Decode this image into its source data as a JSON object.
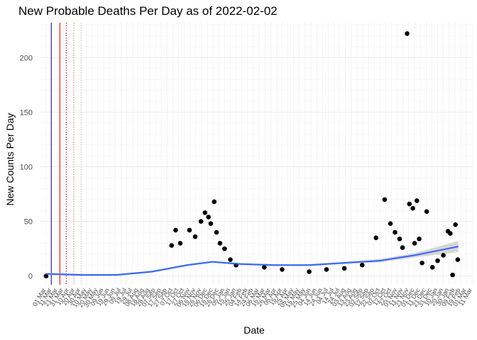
{
  "chart_data": {
    "type": "scatter",
    "title": "New Probable Deaths Per Day as of 2022-02-02",
    "xlabel": "Date",
    "ylabel": "New Counts Per Day",
    "ylim": [
      -8,
      232
    ],
    "yticks": [
      0,
      50,
      100,
      150,
      200
    ],
    "xlim": [
      "2020-02-19",
      "2022-03-12"
    ],
    "x_tick_labels": [
      {
        "date": "2020-03-01",
        "label": "01 Mar"
      },
      {
        "date": "2020-03-11",
        "label": "11 Mar"
      },
      {
        "date": "2020-03-21",
        "label": "21 Mar"
      },
      {
        "date": "2020-03-31",
        "label": "31 Mar"
      },
      {
        "date": "2020-04-10",
        "label": "10 Apr"
      },
      {
        "date": "2020-04-20",
        "label": "20 Apr"
      },
      {
        "date": "2020-04-30",
        "label": "30 Apr"
      },
      {
        "date": "2020-05-10",
        "label": "10 May"
      },
      {
        "date": "2020-05-20",
        "label": "20 May"
      },
      {
        "date": "2020-05-30",
        "label": "30 May"
      },
      {
        "date": "2020-06-09",
        "label": "09 Jun"
      },
      {
        "date": "2020-06-19",
        "label": "19 Jun"
      },
      {
        "date": "2020-06-29",
        "label": "29 Jun"
      },
      {
        "date": "2020-07-09",
        "label": "09 Jul"
      },
      {
        "date": "2020-07-19",
        "label": "19 Jul"
      },
      {
        "date": "2020-07-29",
        "label": "29 Jul"
      },
      {
        "date": "2020-08-08",
        "label": "08 Aug"
      },
      {
        "date": "2020-08-18",
        "label": "18 Aug"
      },
      {
        "date": "2020-08-28",
        "label": "28 Aug"
      },
      {
        "date": "2020-09-07",
        "label": "07 Sep"
      },
      {
        "date": "2020-09-17",
        "label": "17 Sep"
      },
      {
        "date": "2020-09-27",
        "label": "27 Sep"
      },
      {
        "date": "2020-10-07",
        "label": "07 Oct"
      },
      {
        "date": "2020-10-17",
        "label": "17 Oct"
      },
      {
        "date": "2020-10-27",
        "label": "27 Oct"
      },
      {
        "date": "2020-11-06",
        "label": "06 Nov"
      },
      {
        "date": "2020-11-16",
        "label": "16 Nov"
      },
      {
        "date": "2020-11-26",
        "label": "26 Nov"
      },
      {
        "date": "2020-12-06",
        "label": "06 Dec"
      },
      {
        "date": "2020-12-16",
        "label": "16 Dec"
      },
      {
        "date": "2020-12-26",
        "label": "26 Dec"
      },
      {
        "date": "2021-01-05",
        "label": "05 Jan"
      },
      {
        "date": "2021-01-15",
        "label": "15 Jan"
      },
      {
        "date": "2021-01-25",
        "label": "25 Jan"
      },
      {
        "date": "2021-02-04",
        "label": "04 Feb"
      },
      {
        "date": "2021-02-14",
        "label": "14 Feb"
      },
      {
        "date": "2021-02-24",
        "label": "24 Feb"
      },
      {
        "date": "2021-03-06",
        "label": "06 Mar"
      },
      {
        "date": "2021-03-16",
        "label": "16 Mar"
      },
      {
        "date": "2021-03-26",
        "label": "26 Mar"
      },
      {
        "date": "2021-04-05",
        "label": "05 Apr"
      },
      {
        "date": "2021-04-15",
        "label": "15 Apr"
      },
      {
        "date": "2021-04-25",
        "label": "25 Apr"
      },
      {
        "date": "2021-05-05",
        "label": "05 May"
      },
      {
        "date": "2021-05-15",
        "label": "15 May"
      },
      {
        "date": "2021-05-25",
        "label": "25 May"
      },
      {
        "date": "2021-06-04",
        "label": "04 Jun"
      },
      {
        "date": "2021-06-14",
        "label": "14 Jun"
      },
      {
        "date": "2021-06-24",
        "label": "24 Jun"
      },
      {
        "date": "2021-07-04",
        "label": "04 Jul"
      },
      {
        "date": "2021-07-14",
        "label": "14 Jul"
      },
      {
        "date": "2021-07-24",
        "label": "24 Jul"
      },
      {
        "date": "2021-08-03",
        "label": "03 Aug"
      },
      {
        "date": "2021-08-13",
        "label": "13 Aug"
      },
      {
        "date": "2021-08-23",
        "label": "23 Aug"
      },
      {
        "date": "2021-09-02",
        "label": "02 Sep"
      },
      {
        "date": "2021-09-12",
        "label": "12 Sep"
      },
      {
        "date": "2021-09-22",
        "label": "22 Sep"
      },
      {
        "date": "2021-10-02",
        "label": "02 Oct"
      },
      {
        "date": "2021-10-12",
        "label": "12 Oct"
      },
      {
        "date": "2021-10-22",
        "label": "22 Oct"
      },
      {
        "date": "2021-11-01",
        "label": "01 Nov"
      },
      {
        "date": "2021-11-11",
        "label": "11 Nov"
      },
      {
        "date": "2021-11-21",
        "label": "21 Nov"
      },
      {
        "date": "2021-12-01",
        "label": "01 Dec"
      },
      {
        "date": "2021-12-11",
        "label": "11 Dec"
      },
      {
        "date": "2021-12-21",
        "label": "21 Dec"
      },
      {
        "date": "2021-12-31",
        "label": "31 Dec"
      },
      {
        "date": "2022-01-10",
        "label": "10 Jan"
      },
      {
        "date": "2022-01-20",
        "label": "20 Jan"
      },
      {
        "date": "2022-01-30",
        "label": "30 Jan"
      },
      {
        "date": "2022-02-09",
        "label": "09 Feb"
      },
      {
        "date": "2022-02-19",
        "label": "19 Feb"
      },
      {
        "date": "2022-03-01",
        "label": "01 Mar"
      },
      {
        "date": "2022-03-11",
        "label": "11 Mar"
      }
    ],
    "reference_lines": [
      {
        "date": "2020-03-10",
        "color": "#00008b",
        "style": "solid"
      },
      {
        "date": "2020-03-25",
        "color": "#cc0000",
        "style": "solid"
      },
      {
        "date": "2020-04-05",
        "color": "#cc0000",
        "style": "dotted"
      },
      {
        "date": "2020-04-18",
        "color": "#e08080",
        "style": "dotted"
      },
      {
        "date": "2020-05-01",
        "color": "#cccccc",
        "style": "dotted"
      }
    ],
    "series": [
      {
        "type": "points",
        "color": "#000000",
        "points": [
          {
            "x": "2020-03-01",
            "y": 0
          },
          {
            "x": "2020-10-05",
            "y": 28
          },
          {
            "x": "2020-10-12",
            "y": 42
          },
          {
            "x": "2020-10-20",
            "y": 30
          },
          {
            "x": "2020-11-05",
            "y": 42
          },
          {
            "x": "2020-11-15",
            "y": 36
          },
          {
            "x": "2020-11-25",
            "y": 50
          },
          {
            "x": "2020-12-02",
            "y": 58
          },
          {
            "x": "2020-12-08",
            "y": 54
          },
          {
            "x": "2020-12-12",
            "y": 48
          },
          {
            "x": "2020-12-18",
            "y": 68
          },
          {
            "x": "2020-12-22",
            "y": 40
          },
          {
            "x": "2020-12-28",
            "y": 30
          },
          {
            "x": "2021-01-05",
            "y": 25
          },
          {
            "x": "2021-01-15",
            "y": 15
          },
          {
            "x": "2021-01-25",
            "y": 10
          },
          {
            "x": "2021-03-15",
            "y": 8
          },
          {
            "x": "2021-04-15",
            "y": 6
          },
          {
            "x": "2021-06-01",
            "y": 4
          },
          {
            "x": "2021-07-01",
            "y": 6
          },
          {
            "x": "2021-08-01",
            "y": 7
          },
          {
            "x": "2021-09-01",
            "y": 10
          },
          {
            "x": "2021-09-25",
            "y": 35
          },
          {
            "x": "2021-10-10",
            "y": 70
          },
          {
            "x": "2021-10-20",
            "y": 48
          },
          {
            "x": "2021-10-28",
            "y": 40
          },
          {
            "x": "2021-11-05",
            "y": 34
          },
          {
            "x": "2021-11-10",
            "y": 26
          },
          {
            "x": "2021-11-18",
            "y": 222
          },
          {
            "x": "2021-11-22",
            "y": 66
          },
          {
            "x": "2021-11-28",
            "y": 62
          },
          {
            "x": "2021-12-01",
            "y": 30
          },
          {
            "x": "2021-12-05",
            "y": 69
          },
          {
            "x": "2021-12-09",
            "y": 34
          },
          {
            "x": "2021-12-14",
            "y": 12
          },
          {
            "x": "2021-12-22",
            "y": 59
          },
          {
            "x": "2022-01-01",
            "y": 8
          },
          {
            "x": "2022-01-10",
            "y": 14
          },
          {
            "x": "2022-01-20",
            "y": 19
          },
          {
            "x": "2022-01-28",
            "y": 41
          },
          {
            "x": "2022-02-01",
            "y": 39
          },
          {
            "x": "2022-02-05",
            "y": 1
          },
          {
            "x": "2022-02-10",
            "y": 47
          },
          {
            "x": "2022-02-14",
            "y": 15
          }
        ]
      },
      {
        "type": "smooth",
        "color": "#3366ff",
        "ribbon_color": "#cccccc",
        "points": [
          {
            "x": "2020-03-01",
            "y": 2,
            "se": 1
          },
          {
            "x": "2020-05-01",
            "y": 1,
            "se": 1
          },
          {
            "x": "2020-07-01",
            "y": 1,
            "se": 1
          },
          {
            "x": "2020-09-01",
            "y": 4,
            "se": 1
          },
          {
            "x": "2020-11-01",
            "y": 10,
            "se": 1
          },
          {
            "x": "2020-12-15",
            "y": 13,
            "se": 1
          },
          {
            "x": "2021-02-01",
            "y": 11,
            "se": 1
          },
          {
            "x": "2021-04-01",
            "y": 10,
            "se": 1
          },
          {
            "x": "2021-06-01",
            "y": 10,
            "se": 1
          },
          {
            "x": "2021-08-01",
            "y": 12,
            "se": 1
          },
          {
            "x": "2021-10-01",
            "y": 14,
            "se": 1.5
          },
          {
            "x": "2021-12-01",
            "y": 19,
            "se": 2
          },
          {
            "x": "2022-02-15",
            "y": 27,
            "se": 5
          }
        ]
      }
    ],
    "grid": true
  }
}
